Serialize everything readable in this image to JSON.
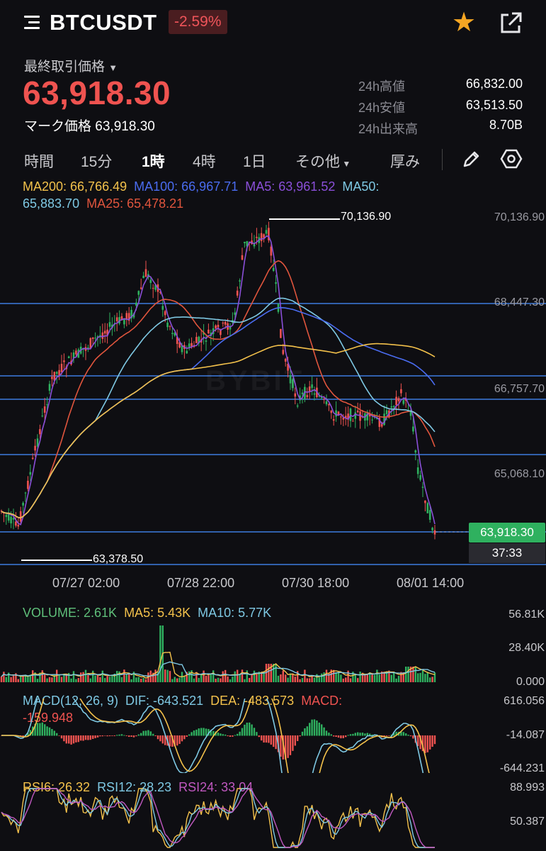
{
  "header": {
    "symbol": "BTCUSDT",
    "change": "-2.59%",
    "menu_icon": "menu-icon",
    "favorite_icon": "star-icon",
    "share_icon": "external-link-icon"
  },
  "price": {
    "last_label": "最終取引価格",
    "last_value": "63,918.30",
    "mark_label": "マーク価格",
    "mark_value": "63,918.30"
  },
  "stats": [
    {
      "label": "24h高値",
      "value": "66,832.00"
    },
    {
      "label": "24h安値",
      "value": "63,513.50"
    },
    {
      "label": "24h出来高",
      "value": "8.70B"
    }
  ],
  "toolbar": {
    "timeframes": [
      "時間",
      "15分",
      "1時",
      "4時",
      "1日",
      "その他"
    ],
    "active": "1時",
    "depth": "厚み",
    "pencil_icon": "pencil-icon",
    "settings_icon": "settings-icon"
  },
  "ma_legend": {
    "ma200": "MA200: 66,766.49",
    "ma100": "MA100: 66,967.71",
    "ma5": "MA5: 63,961.52",
    "ma50": "MA50: 65,883.70",
    "ma25": "MA25: 65,478.21"
  },
  "chart": {
    "price_ticks": [
      "70,136.90",
      "68,447.30",
      "66,757.70",
      "65,068.10"
    ],
    "time_ticks": [
      "07/27 02:00",
      "07/28 22:00",
      "07/30 18:00",
      "08/01 14:00"
    ],
    "high_label": "70,136.90",
    "low_label": "63,378.50",
    "current_tag": "63,918.30",
    "countdown": "37:33",
    "watermark": "BYBIT"
  },
  "volume": {
    "label": "VOLUME: 2.61K",
    "ma5": "MA5: 5.43K",
    "ma10": "MA10: 5.77K",
    "ticks": [
      "56.81K",
      "28.40K",
      "0.000"
    ]
  },
  "macd": {
    "label": "MACD(12, 26, 9)",
    "dif": "DIF: -643.521",
    "dea": "DEA: -483.573",
    "macd": "MACD: -159.948",
    "ticks": [
      "616.056",
      "-14.087",
      "-644.231"
    ]
  },
  "rsi": {
    "rsi6": "RSI6: 26.32",
    "rsi12": "RSI12: 28.23",
    "rsi24": "RSI24: 33.04",
    "ticks": [
      "88.993",
      "50.387"
    ]
  },
  "colors": {
    "up": "#2fb15f",
    "down": "#ef5350",
    "ma200": "#f3c14b",
    "ma100": "#4a6cf0",
    "ma5": "#8a4fd8",
    "ma50": "#7ec8e3",
    "ma25": "#e0553d",
    "hline": "#3d7be0"
  }
}
